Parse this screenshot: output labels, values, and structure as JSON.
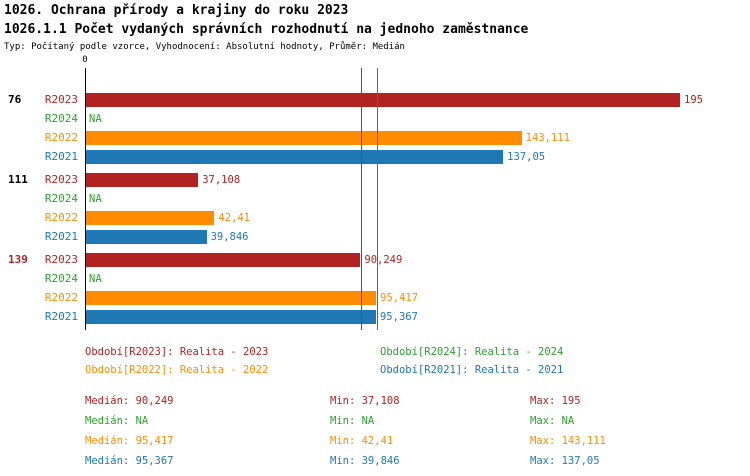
{
  "header": {
    "title": "1026. Ochrana přírody a krajiny do roku 2023",
    "subtitle": "1026.1.1 Počet vydaných správních rozhodnutí na jednoho zaměstnance",
    "meta": "Typ: Počítaný podle vzorce, Vyhodnocení: Absolutní hodnoty, Průměr: Medián"
  },
  "chart_data": {
    "type": "bar",
    "orientation": "horizontal",
    "xlim": [
      0,
      195
    ],
    "x_zero_label": "0",
    "grid": false,
    "legend_position": "bottom",
    "series_colors": {
      "R2023": "#b22222",
      "R2024": "#2ca02c",
      "R2022": "#ff8c00",
      "R2021": "#1f77b4"
    },
    "groups": [
      {
        "label": "76",
        "label_color": "#000000",
        "bars": [
          {
            "series": "R2023",
            "value": 195,
            "value_label": "195"
          },
          {
            "series": "R2024",
            "value": null,
            "value_label": "NA"
          },
          {
            "series": "R2022",
            "value": 143.111,
            "value_label": "143,111"
          },
          {
            "series": "R2021",
            "value": 137.05,
            "value_label": "137,05"
          }
        ]
      },
      {
        "label": "111",
        "label_color": "#000000",
        "bars": [
          {
            "series": "R2023",
            "value": 37.108,
            "value_label": "37,108"
          },
          {
            "series": "R2024",
            "value": null,
            "value_label": "NA"
          },
          {
            "series": "R2022",
            "value": 42.41,
            "value_label": "42,41"
          },
          {
            "series": "R2021",
            "value": 39.846,
            "value_label": "39,846"
          }
        ]
      },
      {
        "label": "139",
        "label_color": "#b22222",
        "bars": [
          {
            "series": "R2023",
            "value": 90.249,
            "value_label": "90,249"
          },
          {
            "series": "R2024",
            "value": null,
            "value_label": "NA"
          },
          {
            "series": "R2022",
            "value": 95.417,
            "value_label": "95,417"
          },
          {
            "series": "R2021",
            "value": 95.367,
            "value_label": "95,367"
          }
        ]
      }
    ],
    "median_lines": [
      {
        "series": "R2023",
        "value": 90.249,
        "color": "#8b3a3a"
      },
      {
        "series": "R2022",
        "value": 95.417,
        "color": "#ff8c00"
      },
      {
        "series": "R2021",
        "value": 95.367,
        "color": "#1f77b4"
      }
    ]
  },
  "legend": {
    "items": [
      {
        "label": "Období[R2023]: Realita - 2023",
        "color": "#b22222"
      },
      {
        "label": "Období[R2024]: Realita - 2024",
        "color": "#2ca02c"
      },
      {
        "label": "Období[R2022]: Realita - 2022",
        "color": "#ff8c00"
      },
      {
        "label": "Období[R2021]: Realita - 2021",
        "color": "#1f77b4"
      }
    ]
  },
  "stats": {
    "rows": [
      {
        "median": "Medián: 90,249",
        "min": "Min: 37,108",
        "max": "Max: 195",
        "color": "#b22222"
      },
      {
        "median": "Medián: NA",
        "min": "Min: NA",
        "max": "Max: NA",
        "color": "#2ca02c"
      },
      {
        "median": "Medián: 95,417",
        "min": "Min: 42,41",
        "max": "Max: 143,111",
        "color": "#ff8c00"
      },
      {
        "median": "Medián: 95,367",
        "min": "Min: 39,846",
        "max": "Max: 137,05",
        "color": "#1f77b4"
      }
    ]
  }
}
